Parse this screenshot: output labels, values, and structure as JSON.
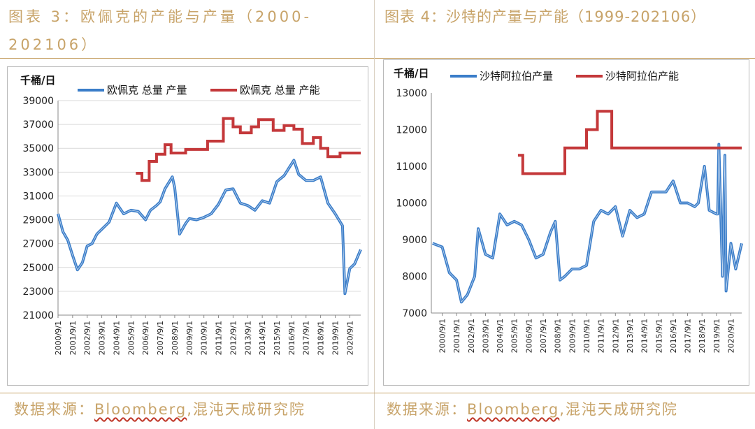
{
  "captions": {
    "left": "图表 3：欧佩克的产能与产量（2000-202106）",
    "right": "图表 4：沙特的产量与产能（1999-202106）"
  },
  "sources": {
    "left_prefix": "数据来源：",
    "left_brand": "Bloomberg",
    "left_suffix": ",混沌天成研究院",
    "right_prefix": "数据来源：",
    "right_brand": "Bloomberg",
    "right_suffix": ",混沌天成研究院"
  },
  "colors": {
    "production": "#3a7dc9",
    "capacity": "#c4383a",
    "accent": "#c8a46a"
  },
  "chart_data": [
    {
      "type": "line",
      "title": "",
      "ylabel": "千桶/日",
      "xlabel": "",
      "ylim": [
        21000,
        39000
      ],
      "yticks": [
        21000,
        23000,
        25000,
        27000,
        29000,
        31000,
        33000,
        35000,
        37000,
        39000
      ],
      "grid": true,
      "legend_position": "top",
      "x_start": "2000/9/1",
      "x_end": "2021/6/1",
      "x_ticks": [
        "2000/9/1",
        "2001/9/1",
        "2002/9/1",
        "2003/9/1",
        "2004/9/1",
        "2005/9/1",
        "2006/9/1",
        "2007/9/1",
        "2008/9/1",
        "2009/9/1",
        "2010/9/1",
        "2011/9/1",
        "2012/9/1",
        "2013/9/1",
        "2014/9/1",
        "2015/9/1",
        "2016/9/1",
        "2017/9/1",
        "2018/9/1",
        "2019/9/1",
        "2020/9/1"
      ],
      "series": [
        {
          "name": "欧佩克 总量 产量",
          "color": "#3a7dc9",
          "x": [
            "2000/9/1",
            "2001/1/1",
            "2001/5/1",
            "2001/9/1",
            "2002/1/1",
            "2002/5/1",
            "2002/9/1",
            "2003/1/1",
            "2003/5/1",
            "2003/9/1",
            "2004/3/1",
            "2004/9/1",
            "2005/3/1",
            "2005/9/1",
            "2006/3/1",
            "2006/9/1",
            "2007/1/1",
            "2007/6/1",
            "2007/9/1",
            "2008/1/1",
            "2008/7/1",
            "2008/9/1",
            "2009/1/1",
            "2009/6/1",
            "2009/9/1",
            "2010/3/1",
            "2010/9/1",
            "2011/3/1",
            "2011/9/1",
            "2012/3/1",
            "2012/9/1",
            "2013/3/1",
            "2013/9/1",
            "2014/3/1",
            "2014/9/1",
            "2015/3/1",
            "2015/9/1",
            "2016/3/1",
            "2016/11/1",
            "2017/3/1",
            "2017/9/1",
            "2018/3/1",
            "2018/9/1",
            "2019/3/1",
            "2019/9/1",
            "2020/3/1",
            "2020/5/1",
            "2020/9/1",
            "2021/1/1",
            "2021/6/1"
          ],
          "y": [
            29500,
            28000,
            27300,
            26000,
            24800,
            25400,
            26800,
            27000,
            27800,
            28200,
            28800,
            30400,
            29500,
            29800,
            29700,
            29000,
            29800,
            30200,
            30500,
            31600,
            32600,
            31700,
            27800,
            28700,
            29100,
            29000,
            29200,
            29500,
            30300,
            31500,
            31600,
            30400,
            30200,
            29800,
            30600,
            30400,
            32200,
            32700,
            34000,
            32800,
            32300,
            32300,
            32600,
            30400,
            29500,
            28500,
            22800,
            24900,
            25300,
            26500
          ]
        },
        {
          "name": "欧佩克 总量 产能",
          "color": "#c4383a",
          "x": [
            "2006/1/1",
            "2006/6/1",
            "2006/6/1",
            "2006/12/1",
            "2006/12/1",
            "2007/6/1",
            "2007/6/1",
            "2008/1/1",
            "2008/1/1",
            "2008/6/1",
            "2008/6/1",
            "2009/6/1",
            "2009/6/1",
            "2010/12/1",
            "2010/12/1",
            "2012/1/1",
            "2012/1/1",
            "2012/9/1",
            "2012/9/1",
            "2013/3/1",
            "2013/3/1",
            "2013/12/1",
            "2013/12/1",
            "2014/6/1",
            "2014/6/1",
            "2015/6/1",
            "2015/6/1",
            "2016/3/1",
            "2016/3/1",
            "2016/11/1",
            "2016/11/1",
            "2017/6/1",
            "2017/6/1",
            "2018/3/1",
            "2018/3/1",
            "2018/9/1",
            "2018/9/1",
            "2019/3/1",
            "2019/3/1",
            "2020/1/1",
            "2020/1/1",
            "2021/6/1"
          ],
          "y": [
            32900,
            32900,
            32300,
            32300,
            33900,
            33900,
            34500,
            34500,
            35300,
            35300,
            34600,
            34600,
            34900,
            34900,
            35600,
            35600,
            37500,
            37500,
            36800,
            36800,
            36300,
            36300,
            36800,
            36800,
            37400,
            37400,
            36500,
            36500,
            36900,
            36900,
            36600,
            36600,
            35400,
            35400,
            35900,
            35900,
            35000,
            35000,
            34300,
            34300,
            34600,
            34600
          ]
        }
      ]
    },
    {
      "type": "line",
      "title": "",
      "ylabel": "千桶/日",
      "xlabel": "",
      "ylim": [
        7000,
        13000
      ],
      "yticks": [
        7000,
        8000,
        9000,
        10000,
        11000,
        12000,
        13000
      ],
      "grid": false,
      "legend_position": "top",
      "x_start": "1999/12/1",
      "x_end": "2021/6/1",
      "x_ticks": [
        "2000/9/1",
        "2001/9/1",
        "2002/9/1",
        "2003/9/1",
        "2004/9/1",
        "2005/9/1",
        "2006/9/1",
        "2007/9/1",
        "2008/9/1",
        "2009/9/1",
        "2010/9/1",
        "2011/9/1",
        "2012/9/1",
        "2013/9/1",
        "2014/9/1",
        "2015/9/1",
        "2016/9/1",
        "2017/9/1",
        "2018/9/1",
        "2019/9/1",
        "2020/9/1"
      ],
      "series": [
        {
          "name": "沙特阿拉伯产量",
          "color": "#3a7dc9",
          "x": [
            "2000/1/1",
            "2000/9/1",
            "2001/3/1",
            "2001/9/1",
            "2002/1/1",
            "2002/6/1",
            "2002/12/1",
            "2003/3/1",
            "2003/9/1",
            "2004/3/1",
            "2004/9/1",
            "2005/3/1",
            "2005/9/1",
            "2006/3/1",
            "2006/9/1",
            "2007/3/1",
            "2007/9/1",
            "2008/3/1",
            "2008/7/1",
            "2008/11/1",
            "2009/3/1",
            "2009/9/1",
            "2010/3/1",
            "2010/9/1",
            "2011/3/1",
            "2011/9/1",
            "2012/3/1",
            "2012/9/1",
            "2013/3/1",
            "2013/9/1",
            "2014/3/1",
            "2014/9/1",
            "2015/3/1",
            "2015/9/1",
            "2016/3/1",
            "2016/9/1",
            "2017/3/1",
            "2017/9/1",
            "2018/3/1",
            "2018/6/1",
            "2018/11/1",
            "2019/3/1",
            "2019/9/1",
            "2019/10/1",
            "2019/11/1",
            "2020/2/1",
            "2020/4/1",
            "2020/5/1",
            "2020/9/1",
            "2021/1/1",
            "2021/6/1"
          ],
          "y": [
            8900,
            8800,
            8100,
            7900,
            7300,
            7500,
            8000,
            9300,
            8600,
            8500,
            9700,
            9400,
            9500,
            9400,
            9000,
            8500,
            8600,
            9200,
            9500,
            7900,
            8000,
            8200,
            8200,
            8300,
            9500,
            9800,
            9700,
            9900,
            9100,
            9800,
            9600,
            9700,
            10300,
            10300,
            10300,
            10600,
            10000,
            10000,
            9900,
            10000,
            11000,
            9800,
            9700,
            9700,
            11600,
            8000,
            11300,
            7600,
            8900,
            8200,
            8900
          ]
        },
        {
          "name": "沙特阿拉伯产能",
          "color": "#c4383a",
          "x": [
            "2005/12/1",
            "2006/4/1",
            "2006/4/1",
            "2009/3/1",
            "2009/3/1",
            "2010/9/1",
            "2010/9/1",
            "2011/6/1",
            "2011/6/1",
            "2012/6/1",
            "2012/6/1",
            "2015/12/1",
            "2015/12/1",
            "2021/6/1"
          ],
          "y": [
            11300,
            11300,
            10800,
            10800,
            11500,
            11500,
            12000,
            12000,
            12500,
            12500,
            11500,
            11500,
            11500,
            11500
          ]
        }
      ]
    }
  ]
}
